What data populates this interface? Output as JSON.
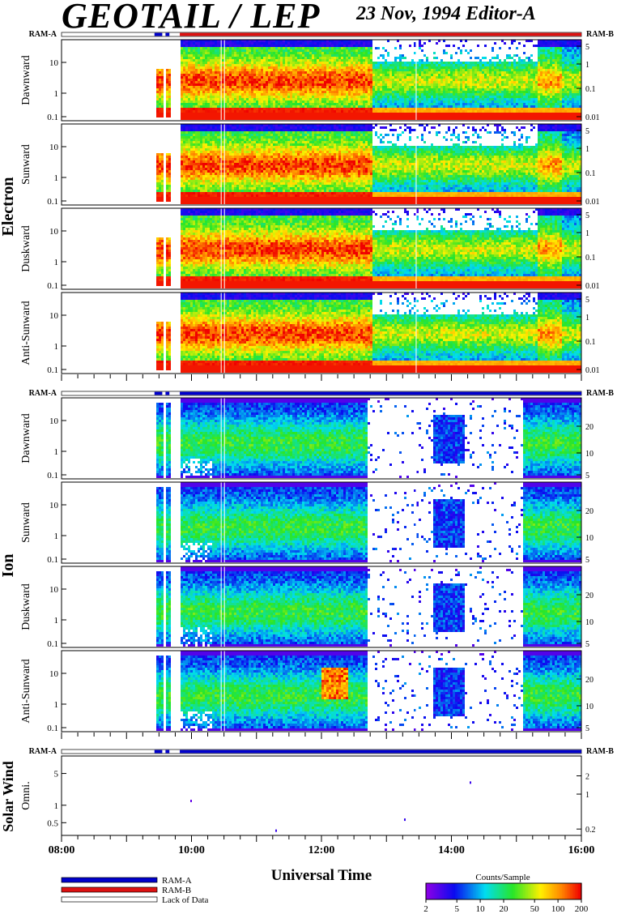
{
  "header": {
    "title": "GEOTAIL / LEP",
    "date_editor": "23 Nov, 1994   Editor-A"
  },
  "chart_data": {
    "type": "heatmap",
    "time_axis": {
      "label": "Universal Time",
      "range": [
        "08:00",
        "16:00"
      ],
      "tick_labels": [
        "08:00",
        "10:00",
        "12:00",
        "14:00",
        "16:00"
      ]
    },
    "mode_bar": {
      "left_label": "RAM-A",
      "right_label": "RAM-B"
    },
    "colorbar": {
      "title": "Counts/Sample",
      "ticks": [
        "2",
        "5",
        "10",
        "20",
        "50",
        "100",
        "200"
      ],
      "scale": "log"
    },
    "legend": [
      {
        "label": "RAM-A",
        "color": "#0000cc"
      },
      {
        "label": "RAM-B",
        "color": "#dd1111"
      },
      {
        "label": "Lack of Data",
        "color": "#ffffff"
      }
    ],
    "groups": [
      {
        "name": "Electron",
        "left_ticks": [
          "10",
          "1",
          "0.1"
        ],
        "right_ticks": [
          "5",
          "1",
          "0.1",
          "0.01"
        ],
        "panels": [
          "Dawnward",
          "Sunward",
          "Duskward",
          "Anti-Sunward"
        ]
      },
      {
        "name": "Ion",
        "left_ticks": [
          "10",
          "1",
          "0.1"
        ],
        "right_ticks": [
          "20",
          "10",
          "5"
        ],
        "panels": [
          "Dawnward",
          "Sunward",
          "Duskward",
          "Anti-Sunward"
        ]
      },
      {
        "name": "Solar Wind",
        "left_ticks": [
          "5",
          "1",
          "0.5"
        ],
        "right_ticks": [
          "2",
          "1",
          "0.2"
        ],
        "panels": [
          "Omni."
        ]
      }
    ]
  }
}
